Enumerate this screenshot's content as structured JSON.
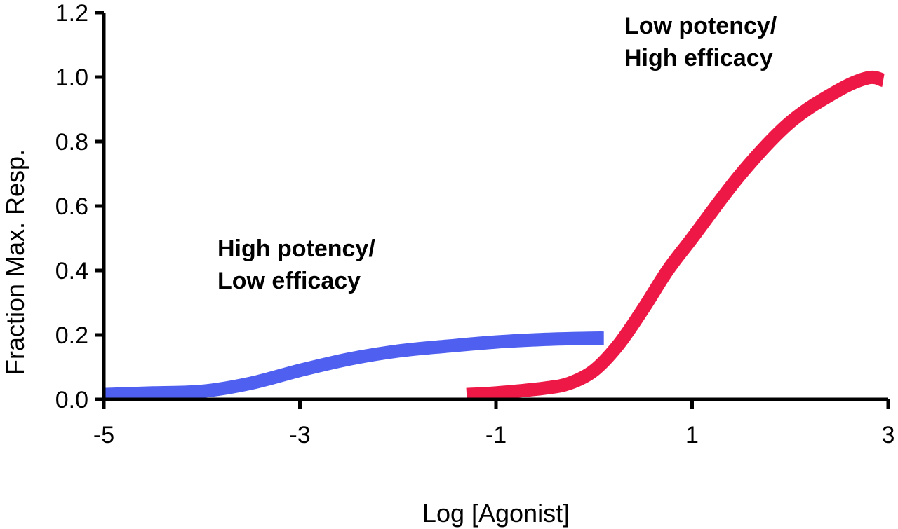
{
  "chart_data": {
    "type": "line",
    "title": "",
    "xlabel": "Log [Agonist]",
    "ylabel": "Fraction Max. Resp.",
    "xlim": [
      -5,
      3
    ],
    "ylim": [
      0,
      1.2
    ],
    "x_ticks": [
      "-5",
      "-3",
      "-1",
      "1",
      "3"
    ],
    "y_ticks": [
      "0.0",
      "0.2",
      "0.4",
      "0.6",
      "0.8",
      "1.0",
      "1.2"
    ],
    "grid": false,
    "legend": "none",
    "series": [
      {
        "color": "#4f5ff0",
        "x": [
          -5.0,
          -4.5,
          -4.0,
          -3.5,
          -3.0,
          -2.5,
          -2.0,
          -1.5,
          -1.0,
          -0.5,
          0.0,
          0.1
        ],
        "y": [
          0.015,
          0.02,
          0.025,
          0.05,
          0.09,
          0.125,
          0.15,
          0.165,
          0.178,
          0.186,
          0.19,
          0.19
        ]
      },
      {
        "color": "#ee1846",
        "x": [
          -1.3,
          -1.0,
          -0.5,
          -0.25,
          0.0,
          0.25,
          0.5,
          0.75,
          1.0,
          1.5,
          2.0,
          2.5,
          2.8,
          2.95
        ],
        "y": [
          0.015,
          0.02,
          0.035,
          0.05,
          0.09,
          0.17,
          0.28,
          0.4,
          0.5,
          0.7,
          0.86,
          0.96,
          0.998,
          0.99
        ]
      }
    ],
    "annotations": [
      {
        "lines": [
          "High potency/",
          "Low efficacy"
        ]
      },
      {
        "lines": [
          "Low potency/",
          "High efficacy"
        ]
      }
    ]
  }
}
